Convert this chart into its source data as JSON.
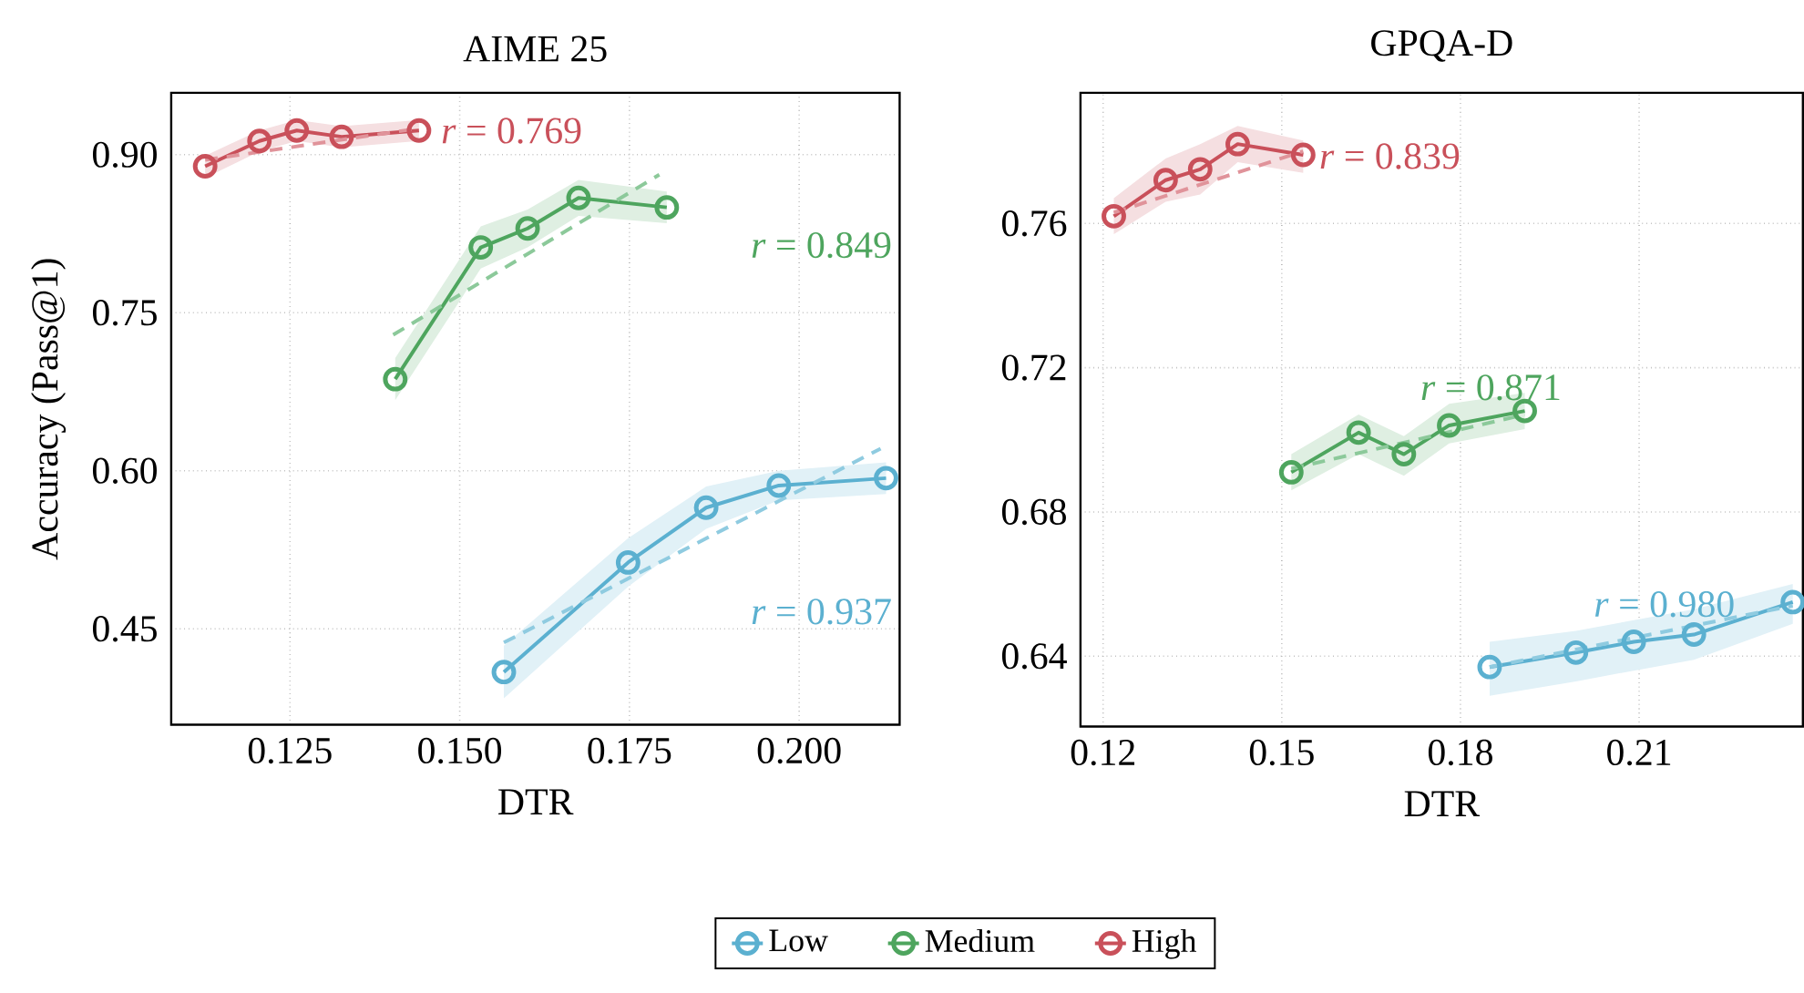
{
  "chart_data": [
    {
      "type": "line",
      "title": "AIME 25",
      "xlabel": "DTR",
      "ylabel": "Accuracy (Pass@1)",
      "xlim": [
        0.1075,
        0.2148
      ],
      "ylim": [
        0.359,
        0.9587
      ],
      "xticks": [
        {
          "value": 0.125,
          "label": "0.125"
        },
        {
          "value": 0.15,
          "label": "0.150"
        },
        {
          "value": 0.175,
          "label": "0.175"
        },
        {
          "value": 0.2,
          "label": "0.200"
        }
      ],
      "yticks": [
        0.45,
        0.75,
        {
          "value": 0.6,
          "label": "0.60"
        },
        {
          "value": 0.9,
          "label": "0.90"
        }
      ],
      "grid": true,
      "legend": "bottom",
      "marker": "circle",
      "line_style": "solid",
      "series": [
        {
          "name": "Low",
          "color": "#5bb0d0",
          "x": [
            0.1565,
            0.1748,
            0.1863,
            0.197,
            0.2128
          ],
          "values": [
            0.409,
            0.513,
            0.565,
            0.586,
            0.593
          ],
          "lower": [
            0.384,
            0.49,
            0.545,
            0.572,
            0.578
          ],
          "upper": [
            0.434,
            0.536,
            0.585,
            0.6,
            0.608
          ]
        },
        {
          "name": "Medium",
          "color": "#4ea55e",
          "x": [
            0.1405,
            0.1531,
            0.16,
            0.1675,
            0.1805
          ],
          "values": [
            0.687,
            0.812,
            0.83,
            0.859,
            0.85
          ],
          "lower": [
            0.667,
            0.792,
            0.812,
            0.842,
            0.835
          ],
          "upper": [
            0.707,
            0.832,
            0.848,
            0.876,
            0.865
          ]
        },
        {
          "name": "High",
          "color": "#c9505a",
          "x": [
            0.1125,
            0.1205,
            0.126,
            0.1326,
            0.144
          ],
          "values": [
            0.889,
            0.913,
            0.923,
            0.917,
            0.923
          ],
          "lower": [
            0.878,
            0.903,
            0.913,
            0.907,
            0.913
          ],
          "upper": [
            0.899,
            0.923,
            0.933,
            0.927,
            0.933
          ]
        },
        {
          "type": "line",
          "color": "#8fcbe0",
          "line_style": "dashed",
          "marker": "none",
          "x": [
            0.1565,
            0.212
          ],
          "values": [
            0.437,
            0.621
          ]
        },
        {
          "type": "line",
          "color": "#8cc99a",
          "line_style": "dashed",
          "marker": "none",
          "x": [
            0.1402,
            0.1794
          ],
          "values": [
            0.729,
            0.881
          ]
        },
        {
          "type": "line",
          "color": "#e0939a",
          "line_style": "dashed",
          "marker": "none",
          "x": [
            0.1125,
            0.144
          ],
          "values": [
            0.895,
            0.925
          ]
        }
      ],
      "annotations": [
        "*r* = 0.937",
        "*r* = 0.849",
        "*r* = 0.769"
      ]
    },
    {
      "type": "line",
      "title": "GPQA-D",
      "xlabel": "DTR",
      "xlim": [
        0.1162,
        0.2375
      ],
      "ylim": [
        0.6205,
        0.7962
      ],
      "xticks": [
        0.12,
        0.15,
        0.18,
        0.21
      ],
      "yticks": [
        0.64,
        0.68,
        0.72,
        0.76
      ],
      "grid": true,
      "marker": "circle",
      "line_style": "solid",
      "series": [
        {
          "color": "#5bb0d0",
          "x": [
            0.1849,
            0.1994,
            0.2091,
            0.2192,
            0.2358
          ],
          "values": [
            0.637,
            0.641,
            0.644,
            0.646,
            0.655
          ],
          "lower": [
            0.629,
            0.633,
            0.636,
            0.639,
            0.649
          ],
          "upper": [
            0.644,
            0.647,
            0.65,
            0.653,
            0.66
          ]
        },
        {
          "color": "#4ea55e",
          "x": [
            0.1516,
            0.1629,
            0.1705,
            0.1781,
            0.1908
          ],
          "values": [
            0.691,
            0.702,
            0.696,
            0.704,
            0.708
          ],
          "lower": [
            0.686,
            0.696,
            0.69,
            0.699,
            0.703
          ],
          "upper": [
            0.696,
            0.707,
            0.701,
            0.71,
            0.713
          ]
        },
        {
          "color": "#c9505a",
          "x": [
            0.1218,
            0.1305,
            0.1363,
            0.1426,
            0.1536
          ],
          "values": [
            0.762,
            0.772,
            0.775,
            0.782,
            0.779
          ],
          "lower": [
            0.757,
            0.766,
            0.768,
            0.777,
            0.774
          ],
          "upper": [
            0.767,
            0.778,
            0.782,
            0.787,
            0.783
          ]
        },
        {
          "type": "line",
          "color": "#8fcbe0",
          "line_style": "dashed",
          "marker": "none",
          "x": [
            0.1849,
            0.2358
          ],
          "values": [
            0.637,
            0.654
          ]
        },
        {
          "type": "line",
          "color": "#8cc99a",
          "line_style": "dashed",
          "marker": "none",
          "x": [
            0.1516,
            0.1908
          ],
          "values": [
            0.692,
            0.707
          ]
        },
        {
          "type": "line",
          "color": "#e0939a",
          "line_style": "dashed",
          "marker": "none",
          "x": [
            0.1218,
            0.1536
          ],
          "values": [
            0.763,
            0.78
          ]
        }
      ],
      "annotations": [
        "*r* = 0.980",
        "*r* = 0.871",
        "*r* = 0.839"
      ]
    }
  ]
}
